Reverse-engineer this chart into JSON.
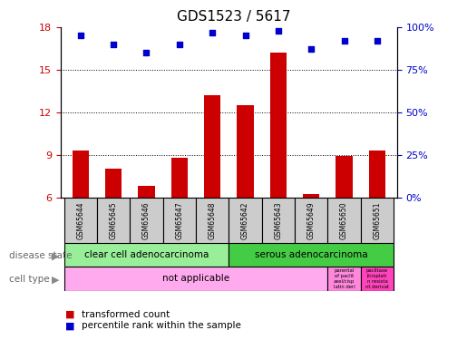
{
  "title": "GDS1523 / 5617",
  "samples": [
    "GSM65644",
    "GSM65645",
    "GSM65646",
    "GSM65647",
    "GSM65648",
    "GSM65642",
    "GSM65643",
    "GSM65649",
    "GSM65650",
    "GSM65651"
  ],
  "transformed_counts": [
    9.3,
    8.0,
    6.8,
    8.8,
    13.2,
    12.5,
    16.2,
    6.2,
    8.9,
    9.3
  ],
  "percentile_ranks": [
    95,
    90,
    85,
    90,
    97,
    95,
    98,
    87,
    92,
    92
  ],
  "ylim": [
    6,
    18
  ],
  "yticks": [
    6,
    9,
    12,
    15,
    18
  ],
  "percentile_ylim": [
    0,
    100
  ],
  "percentile_yticks": [
    0,
    25,
    50,
    75,
    100
  ],
  "percentile_ytick_labels": [
    "0%",
    "25%",
    "50%",
    "75%",
    "100%"
  ],
  "bar_color": "#cc0000",
  "dot_color": "#0000cc",
  "bar_width": 0.5,
  "disease_state_groups": [
    {
      "label": "clear cell adenocarcinoma",
      "start": 0,
      "end": 4,
      "color": "#99ee99"
    },
    {
      "label": "serous adenocarcinoma",
      "start": 5,
      "end": 9,
      "color": "#44cc44"
    }
  ],
  "cell_type_main_label": "not applicable",
  "cell_type_main_color": "#ffaaee",
  "cell_type_sub1_text": "parental\nof paclit\naxel/cisp\nlatin deri",
  "cell_type_sub1_color": "#ff88dd",
  "cell_type_sub2_text": "paclitaxe\nl/cisplati\nn resista\nnt derivat",
  "cell_type_sub2_color": "#ff44bb",
  "sample_bg_color": "#cccccc",
  "left_label_color": "#cc0000",
  "right_label_color": "#0000cc"
}
